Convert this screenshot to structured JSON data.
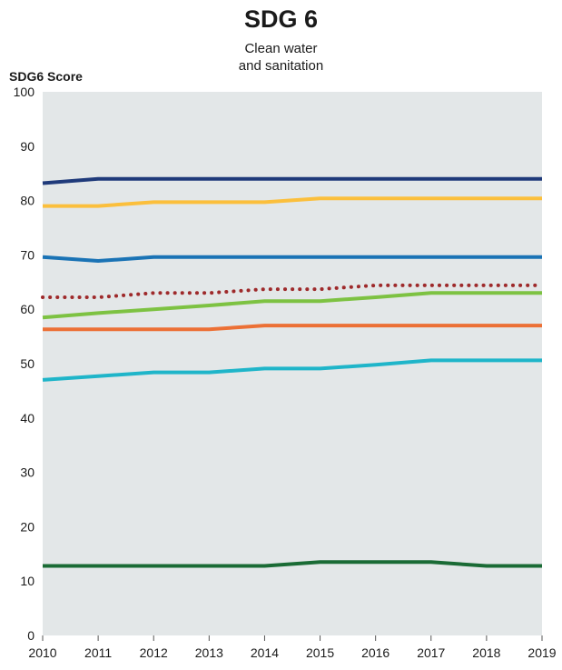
{
  "chart_data": {
    "type": "line",
    "title": "SDG 6",
    "subtitle_lines": [
      "Clean water",
      "and sanitation"
    ],
    "ylabel": "SDG6 Score",
    "xlabel": "",
    "ylim": [
      0,
      100
    ],
    "y_ticks": [
      "0",
      "10",
      "20",
      "30",
      "40",
      "50",
      "60",
      "70",
      "80",
      "90",
      "100"
    ],
    "x": [
      "2010",
      "2011",
      "2012",
      "2013",
      "2014",
      "2015",
      "2016",
      "2017",
      "2018",
      "2019"
    ],
    "grid": false,
    "legend": "none",
    "series": [
      {
        "color": "#1f3a7a",
        "style": "solid",
        "values": [
          83.2,
          84.0,
          84.0,
          84.0,
          84.0,
          84.0,
          84.0,
          84.0,
          84.0,
          84.0
        ]
      },
      {
        "color": "#fbbf3c",
        "style": "solid",
        "values": [
          79.0,
          79.0,
          79.7,
          79.7,
          79.7,
          80.4,
          80.4,
          80.4,
          80.4,
          80.4
        ]
      },
      {
        "color": "#1a73b5",
        "style": "solid",
        "values": [
          69.6,
          68.9,
          69.6,
          69.6,
          69.6,
          69.6,
          69.6,
          69.6,
          69.6,
          69.6
        ]
      },
      {
        "color": "#9e2a2b",
        "style": "dotted",
        "values": [
          62.2,
          62.2,
          63.0,
          63.0,
          63.7,
          63.7,
          64.4,
          64.4,
          64.4,
          64.4
        ]
      },
      {
        "color": "#7dc242",
        "style": "solid",
        "values": [
          58.5,
          59.3,
          60.0,
          60.7,
          61.5,
          61.5,
          62.2,
          63.0,
          63.0,
          63.0
        ]
      },
      {
        "color": "#ec7035",
        "style": "solid",
        "values": [
          56.3,
          56.3,
          56.3,
          56.3,
          57.0,
          57.0,
          57.0,
          57.0,
          57.0,
          57.0
        ]
      },
      {
        "color": "#1fb5c9",
        "style": "solid",
        "values": [
          47.0,
          47.7,
          48.4,
          48.4,
          49.1,
          49.1,
          49.8,
          50.6,
          50.6,
          50.6
        ]
      },
      {
        "color": "#1a6b35",
        "style": "solid",
        "values": [
          12.8,
          12.8,
          12.8,
          12.8,
          12.8,
          13.5,
          13.5,
          13.5,
          12.8,
          12.8
        ]
      }
    ]
  }
}
